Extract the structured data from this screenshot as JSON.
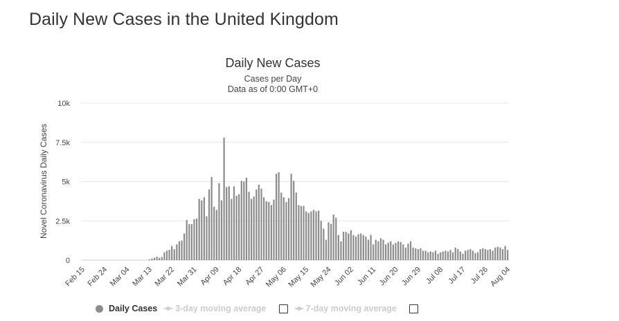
{
  "page": {
    "heading": "Daily New Cases in the United Kingdom"
  },
  "colors": {
    "bar": "#8c8c8c",
    "grid": "#e6e6e6",
    "text": "#333333",
    "legend_inactive": "#cccccc"
  },
  "chart_data": {
    "type": "bar",
    "title": "Daily New Cases",
    "subtitle_lines": [
      "Cases per Day",
      "Data as of 0:00 GMT+0"
    ],
    "xlabel": "",
    "ylabel": "Novel Coronavirus Daily Cases",
    "ylim": [
      0,
      10000
    ],
    "yticks": [
      {
        "value": 0,
        "label": "0"
      },
      {
        "value": 2500,
        "label": "2.5k"
      },
      {
        "value": 5000,
        "label": "5k"
      },
      {
        "value": 7500,
        "label": "7.5k"
      },
      {
        "value": 10000,
        "label": "10k"
      }
    ],
    "x_start_date": "Feb 15",
    "xticks": [
      {
        "index": 0,
        "label": "Feb 15"
      },
      {
        "index": 9,
        "label": "Feb 24"
      },
      {
        "index": 18,
        "label": "Mar 04"
      },
      {
        "index": 27,
        "label": "Mar 13"
      },
      {
        "index": 36,
        "label": "Mar 22"
      },
      {
        "index": 45,
        "label": "Mar 31"
      },
      {
        "index": 54,
        "label": "Apr 09"
      },
      {
        "index": 63,
        "label": "Apr 18"
      },
      {
        "index": 72,
        "label": "Apr 27"
      },
      {
        "index": 81,
        "label": "May 06"
      },
      {
        "index": 90,
        "label": "May 15"
      },
      {
        "index": 99,
        "label": "May 24"
      },
      {
        "index": 108,
        "label": "Jun 02"
      },
      {
        "index": 117,
        "label": "Jun 11"
      },
      {
        "index": 126,
        "label": "Jun 20"
      },
      {
        "index": 135,
        "label": "Jun 29"
      },
      {
        "index": 144,
        "label": "Jul 08"
      },
      {
        "index": 153,
        "label": "Jul 17"
      },
      {
        "index": 162,
        "label": "Jul 26"
      },
      {
        "index": 171,
        "label": "Aug 04"
      }
    ],
    "grid": true,
    "legend_position": "bottom-left",
    "series": [
      {
        "name": "Daily Cases",
        "values": [
          0,
          0,
          0,
          0,
          0,
          0,
          0,
          0,
          0,
          0,
          0,
          0,
          0,
          0,
          0,
          0,
          0,
          0,
          0,
          0,
          0,
          0,
          0,
          0,
          0,
          0,
          0,
          50,
          100,
          150,
          220,
          150,
          200,
          500,
          600,
          650,
          900,
          700,
          1000,
          1200,
          1250,
          1700,
          2550,
          2300,
          2300,
          2600,
          2650,
          3900,
          3800,
          4000,
          2800,
          4500,
          5300,
          3400,
          3200,
          4900,
          3800,
          7800,
          4650,
          4700,
          3900,
          4700,
          4100,
          4200,
          5050,
          5000,
          5250,
          4350,
          3900,
          4050,
          4500,
          4800,
          4550,
          4000,
          3750,
          3700,
          3500,
          3850,
          5500,
          5600,
          4300,
          4000,
          3700,
          3950,
          5500,
          5050,
          4300,
          3500,
          3450,
          3450,
          3100,
          3000,
          3100,
          3200,
          3100,
          3150,
          2500,
          2000,
          1300,
          2400,
          2300,
          2900,
          2700,
          1600,
          1200,
          1800,
          1800,
          1700,
          1900,
          1600,
          1500,
          1650,
          1700,
          1600,
          1500,
          1300,
          1600,
          1000,
          1300,
          1200,
          1400,
          1300,
          1000,
          1100,
          1200,
          1000,
          1100,
          1200,
          1150,
          1000,
          800,
          1050,
          1200,
          800,
          750,
          700,
          750,
          600,
          600,
          500,
          550,
          500,
          600,
          400,
          500,
          550,
          600,
          550,
          650,
          500,
          800,
          700,
          550,
          400,
          600,
          650,
          700,
          600,
          450,
          500,
          700,
          750,
          700,
          650,
          700,
          600,
          800,
          850,
          800,
          700,
          900,
          650
        ]
      }
    ],
    "legend": [
      {
        "name": "Daily Cases",
        "active": true
      },
      {
        "name": "3-day moving average",
        "active": false
      },
      {
        "name": "7-day moving average",
        "active": false
      }
    ]
  }
}
